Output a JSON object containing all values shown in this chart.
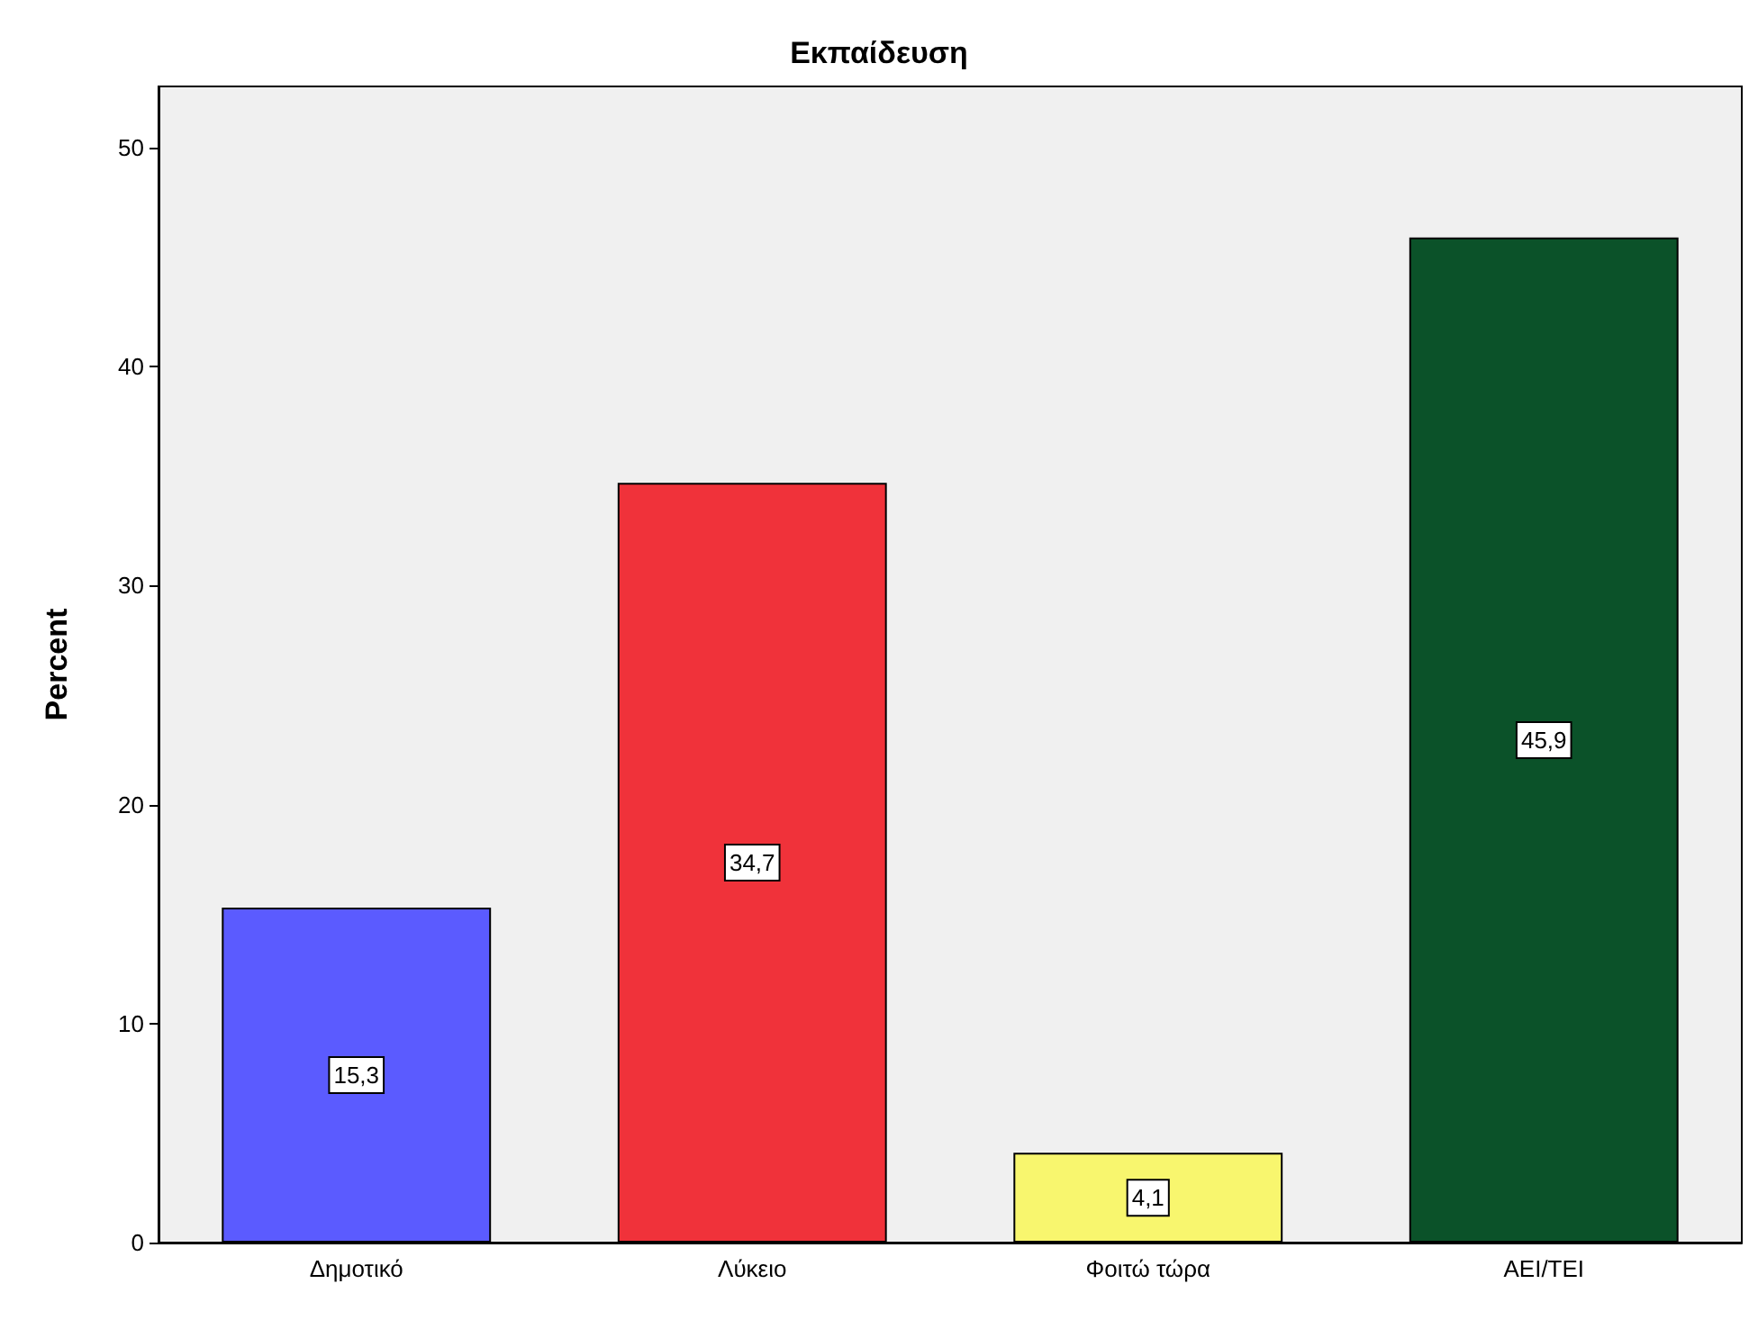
{
  "chart_data": {
    "type": "bar",
    "title": "Εκπαίδευση",
    "ylabel": "Percent",
    "categories": [
      "Δημοτικό",
      "Λύκειο",
      "Φοιτώ τώρα",
      "ΑΕΙ/ΤΕΙ"
    ],
    "values": [
      15.3,
      34.7,
      4.1,
      45.9
    ],
    "value_labels": [
      "15,3",
      "34,7",
      "4,1",
      "45,9"
    ],
    "colors": [
      "#5b5bff",
      "#f0323a",
      "#f8f66e",
      "#0b5229"
    ],
    "ylim": [
      0,
      52.8
    ],
    "yticks": [
      0,
      10,
      20,
      30,
      40,
      50
    ],
    "grid": false
  }
}
